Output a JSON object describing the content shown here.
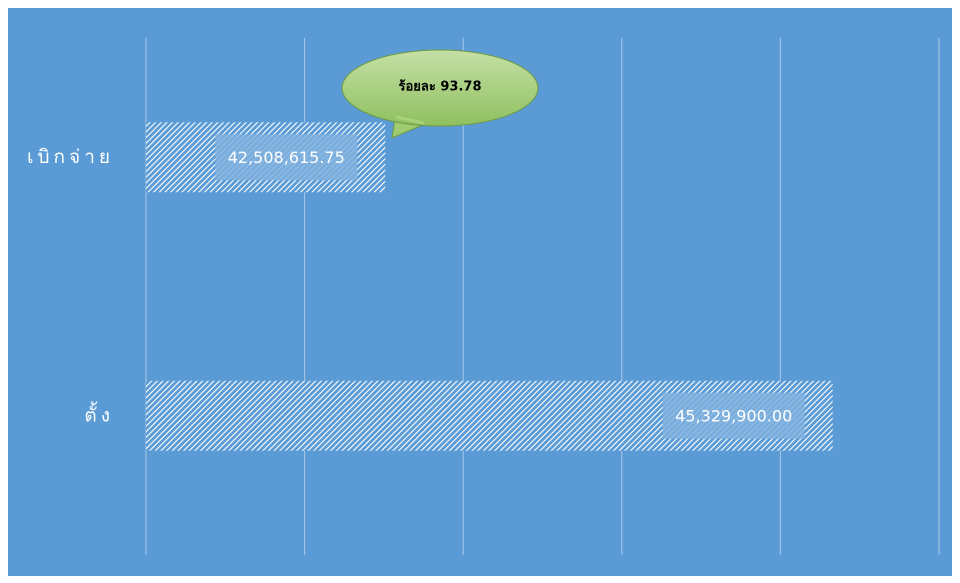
{
  "chart_data": {
    "type": "barh",
    "categories": [
      "เบิกจ่าย",
      "ตั้ง"
    ],
    "values": [
      42508615.75,
      45329900.0
    ],
    "value_labels": [
      "42,508,615.75",
      "45,329,900.00"
    ],
    "color": "#ffffff",
    "xlim": [
      41000000,
      46000000
    ],
    "xticks": [
      41000000,
      42000000,
      43000000,
      44000000,
      45000000,
      46000000
    ],
    "grid": true,
    "annotations": [
      {
        "text": "ร้อยละ 93.78"
      }
    ]
  }
}
